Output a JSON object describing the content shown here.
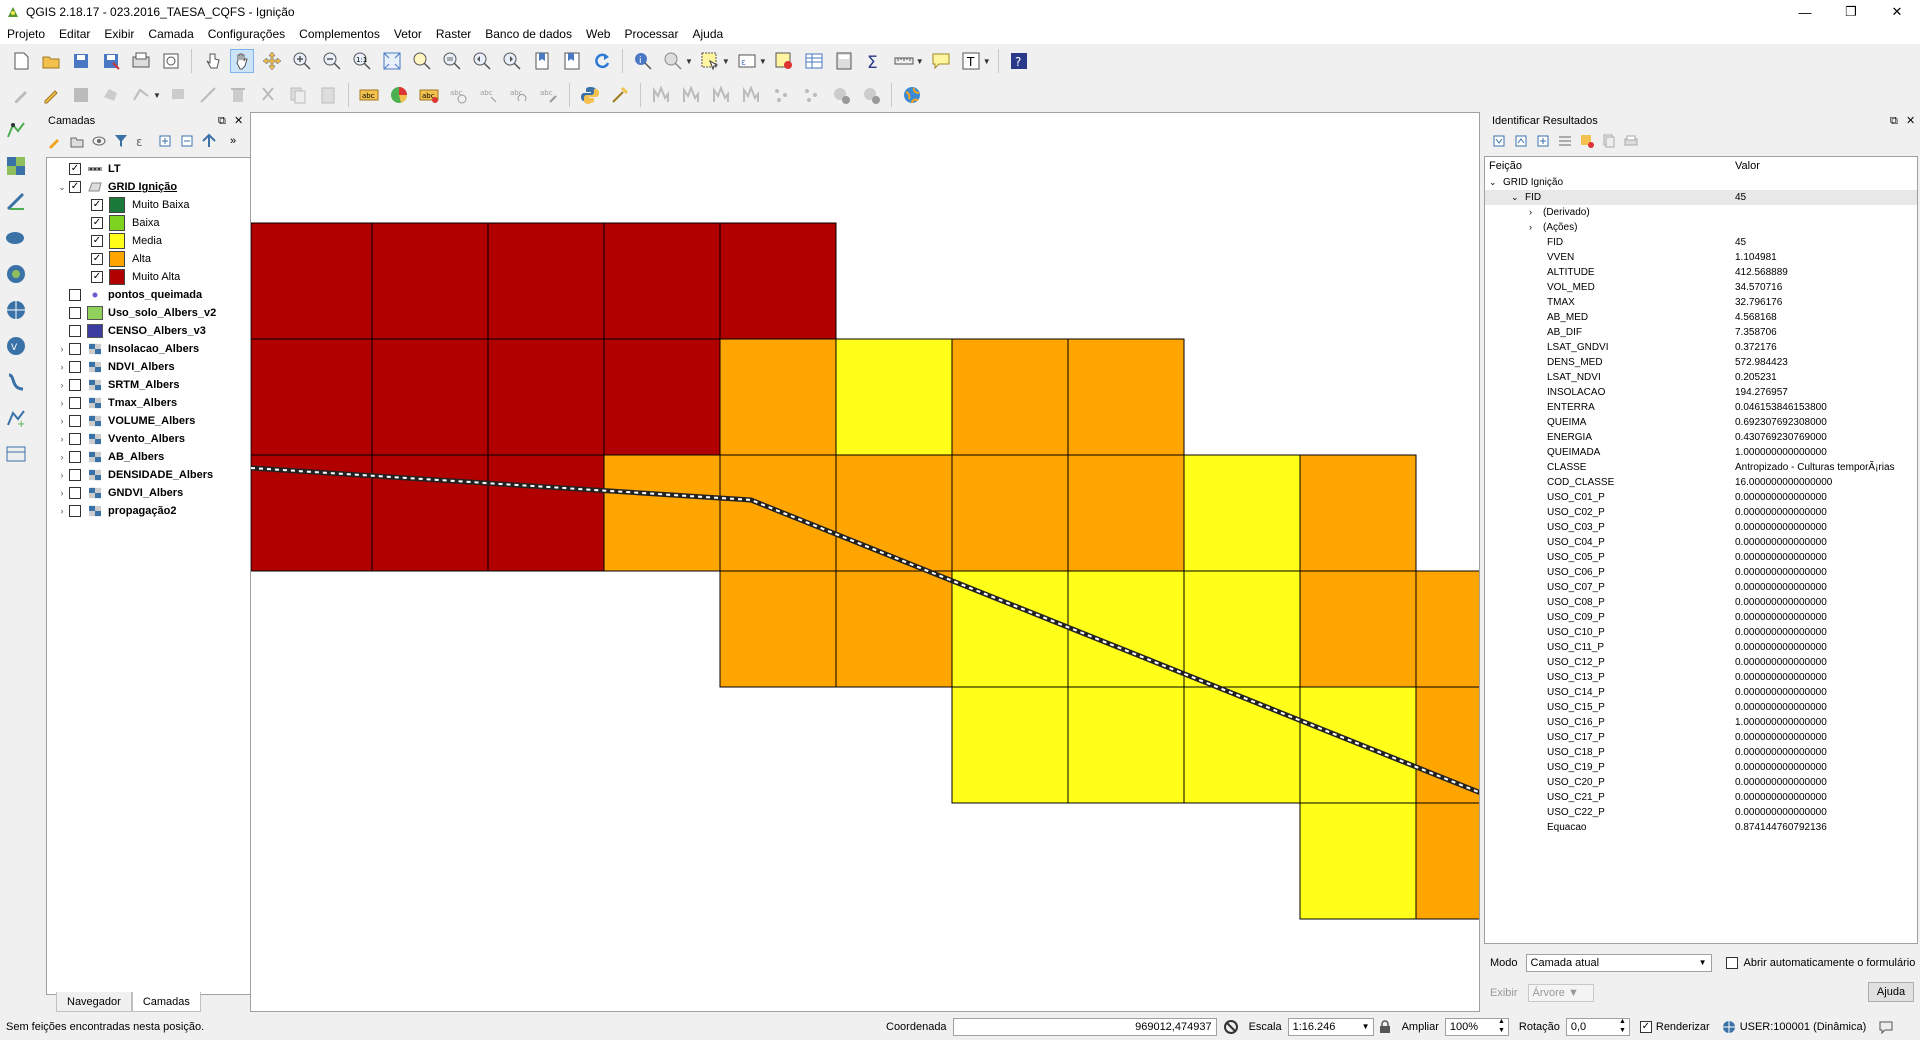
{
  "window": {
    "title": "QGIS 2.18.17 - 023.2016_TAESA_CQFS - Ignição",
    "minimize": "—",
    "maximize": "❐",
    "close": "✕"
  },
  "menu": [
    "Projeto",
    "Editar",
    "Exibir",
    "Camada",
    "Configurações",
    "Complementos",
    "Vetor",
    "Raster",
    "Banco de dados",
    "Web",
    "Processar",
    "Ajuda"
  ],
  "layers_panel": {
    "title": "Camadas",
    "tabs": [
      "Navegador",
      "Camadas"
    ],
    "layers": [
      {
        "name": "LT",
        "checked": true,
        "icon": "line-icon",
        "expander": ""
      },
      {
        "name": "GRID Ignição",
        "checked": true,
        "icon": "polygon-icon",
        "expander": "⌄",
        "underline": true
      },
      {
        "name": "pontos_queimada",
        "checked": false,
        "icon": "point-icon",
        "expander": ""
      },
      {
        "name": "Uso_solo_Albers_v2",
        "checked": false,
        "icon": "fill-green",
        "expander": ""
      },
      {
        "name": "CENSO_Albers_v3",
        "checked": false,
        "icon": "fill-blue",
        "expander": ""
      },
      {
        "name": "Insolacao_Albers",
        "checked": false,
        "icon": "raster-icon",
        "expander": "›"
      },
      {
        "name": "NDVI_Albers",
        "checked": false,
        "icon": "raster-icon",
        "expander": "›"
      },
      {
        "name": "SRTM_Albers",
        "checked": false,
        "icon": "raster-icon",
        "expander": "›"
      },
      {
        "name": "Tmax_Albers",
        "checked": false,
        "icon": "raster-icon",
        "expander": "›"
      },
      {
        "name": "VOLUME_Albers",
        "checked": false,
        "icon": "raster-icon",
        "expander": "›"
      },
      {
        "name": "Vvento_Albers",
        "checked": false,
        "icon": "raster-icon",
        "expander": "›"
      },
      {
        "name": "AB_Albers",
        "checked": false,
        "icon": "raster-icon",
        "expander": "›"
      },
      {
        "name": "DENSIDADE_Albers",
        "checked": false,
        "icon": "raster-icon",
        "expander": "›"
      },
      {
        "name": "GNDVI_Albers",
        "checked": false,
        "icon": "raster-icon",
        "expander": "›"
      },
      {
        "name": "propagação2",
        "checked": false,
        "icon": "raster-icon",
        "expander": "›"
      }
    ],
    "classes": [
      {
        "label": "Muito Baixa",
        "color": "#1a7a3a"
      },
      {
        "label": "Baixa",
        "color": "#7ed321"
      },
      {
        "label": "Media",
        "color": "#ffff1a"
      },
      {
        "label": "Alta",
        "color": "#ffa500"
      },
      {
        "label": "Muito Alta",
        "color": "#b00000"
      }
    ]
  },
  "identify_panel": {
    "title": "Identificar Resultados",
    "col_feature": "Feição",
    "col_value": "Valor",
    "layer": "GRID Ignição",
    "feature_label": "FID",
    "feature_value": "45",
    "derived": "(Derivado)",
    "actions": "(Ações)",
    "attributes": [
      {
        "k": "FID",
        "v": "45"
      },
      {
        "k": "VVEN",
        "v": "1.104981"
      },
      {
        "k": "ALTITUDE",
        "v": "412.568889"
      },
      {
        "k": "VOL_MED",
        "v": "34.570716"
      },
      {
        "k": "TMAX",
        "v": "32.796176"
      },
      {
        "k": "AB_MED",
        "v": "4.568168"
      },
      {
        "k": "AB_DIF",
        "v": "7.358706"
      },
      {
        "k": "LSAT_GNDVI",
        "v": "0.372176"
      },
      {
        "k": "DENS_MED",
        "v": "572.984423"
      },
      {
        "k": "LSAT_NDVI",
        "v": "0.205231"
      },
      {
        "k": "INSOLACAO",
        "v": "194.276957"
      },
      {
        "k": "ENTERRA",
        "v": "0.046153846153800"
      },
      {
        "k": "QUEIMA",
        "v": "0.692307692308000"
      },
      {
        "k": "ENERGIA",
        "v": "0.430769230769000"
      },
      {
        "k": "QUEIMADA",
        "v": "1.000000000000000"
      },
      {
        "k": "CLASSE",
        "v": "Antropizado - Culturas temporÃ¡rias"
      },
      {
        "k": "COD_CLASSE",
        "v": "16.000000000000000"
      },
      {
        "k": "USO_C01_P",
        "v": "0.000000000000000"
      },
      {
        "k": "USO_C02_P",
        "v": "0.000000000000000"
      },
      {
        "k": "USO_C03_P",
        "v": "0.000000000000000"
      },
      {
        "k": "USO_C04_P",
        "v": "0.000000000000000"
      },
      {
        "k": "USO_C05_P",
        "v": "0.000000000000000"
      },
      {
        "k": "USO_C06_P",
        "v": "0.000000000000000"
      },
      {
        "k": "USO_C07_P",
        "v": "0.000000000000000"
      },
      {
        "k": "USO_C08_P",
        "v": "0.000000000000000"
      },
      {
        "k": "USO_C09_P",
        "v": "0.000000000000000"
      },
      {
        "k": "USO_C10_P",
        "v": "0.000000000000000"
      },
      {
        "k": "USO_C11_P",
        "v": "0.000000000000000"
      },
      {
        "k": "USO_C12_P",
        "v": "0.000000000000000"
      },
      {
        "k": "USO_C13_P",
        "v": "0.000000000000000"
      },
      {
        "k": "USO_C14_P",
        "v": "0.000000000000000"
      },
      {
        "k": "USO_C15_P",
        "v": "0.000000000000000"
      },
      {
        "k": "USO_C16_P",
        "v": "1.000000000000000"
      },
      {
        "k": "USO_C17_P",
        "v": "0.000000000000000"
      },
      {
        "k": "USO_C18_P",
        "v": "0.000000000000000"
      },
      {
        "k": "USO_C19_P",
        "v": "0.000000000000000"
      },
      {
        "k": "USO_C20_P",
        "v": "0.000000000000000"
      },
      {
        "k": "USO_C21_P",
        "v": "0.000000000000000"
      },
      {
        "k": "USO_C22_P",
        "v": "0.000000000000000"
      },
      {
        "k": "Equacao",
        "v": "0.874144760792136"
      }
    ],
    "mode_label": "Modo",
    "mode_value": "Camada atual",
    "auto_open": "Abrir automaticamente o formulário",
    "view_label": "Exibir",
    "view_value": "Árvore",
    "help": "Ajuda"
  },
  "map": {
    "colors": {
      "muito_alta": "#b00000",
      "alta": "#ffa500",
      "media": "#ffff1a"
    }
  },
  "statusbar": {
    "message": "Sem feições encontradas nesta posição.",
    "coord_label": "Coordenada",
    "coord_value": "969012,474937",
    "scale_label": "Escala",
    "scale_value": "1:16.246",
    "zoom_label": "Ampliar",
    "zoom_value": "100%",
    "rotation_label": "Rotação",
    "rotation_value": "0,0",
    "render_label": "Renderizar",
    "crs": "USER:100001 (Dinâmica)"
  }
}
